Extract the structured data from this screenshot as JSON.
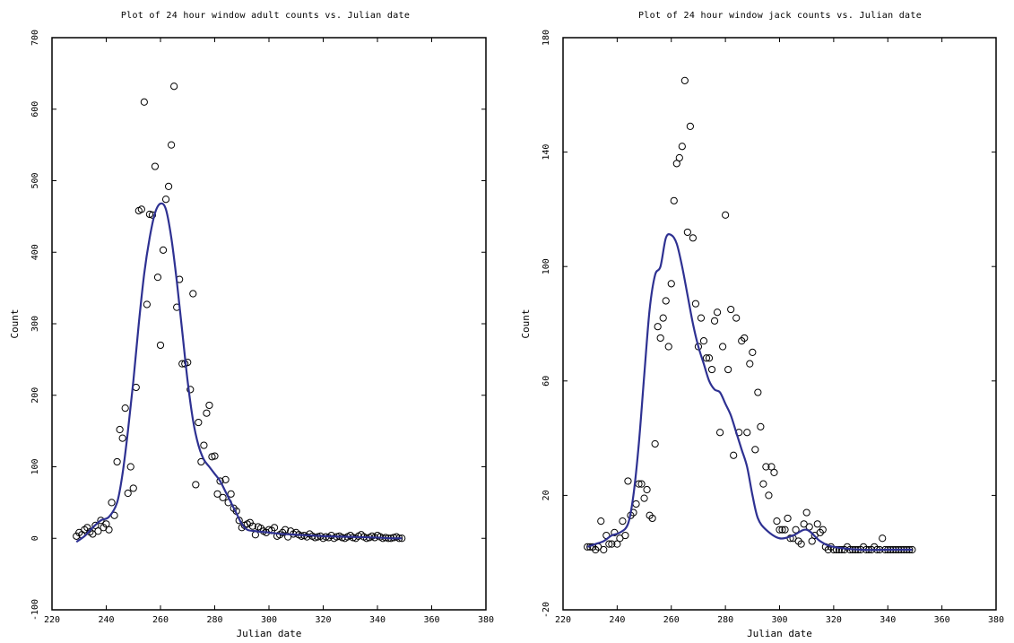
{
  "chart_data": [
    {
      "type": "scatter",
      "title": "Plot of 24 hour window adult counts vs. Julian date",
      "xlabel": "Julian date",
      "ylabel": "Count",
      "xlim": [
        220,
        380
      ],
      "ylim": [
        -100,
        700
      ],
      "xticks": [
        220,
        240,
        260,
        280,
        300,
        320,
        340,
        360,
        380
      ],
      "yticks": [
        -100,
        0,
        100,
        200,
        300,
        400,
        500,
        600,
        700
      ],
      "grid": false,
      "marker_color": "#000000",
      "line_color": "#2e3192",
      "series": [
        {
          "kind": "points",
          "x": [
            229,
            230,
            231,
            232,
            233,
            234,
            235,
            236,
            237,
            238,
            239,
            240,
            241,
            242,
            243,
            244,
            245,
            246,
            247,
            248,
            249,
            250,
            251,
            252,
            253,
            254,
            255,
            256,
            257,
            258,
            259,
            260,
            261,
            262,
            263,
            264,
            265,
            266,
            267,
            268,
            269,
            270,
            271,
            272,
            273,
            274,
            275,
            276,
            277,
            278,
            279,
            280,
            281,
            282,
            283,
            284,
            285,
            286,
            287,
            288,
            289,
            290,
            291,
            292,
            293,
            294,
            295,
            296,
            297,
            298,
            299,
            300,
            301,
            302,
            303,
            304,
            305,
            306,
            307,
            308,
            309,
            310,
            311,
            312,
            313,
            314,
            315,
            316,
            317,
            318,
            319,
            320,
            321,
            322,
            323,
            324,
            325,
            326,
            327,
            328,
            329,
            330,
            331,
            332,
            333,
            334,
            335,
            336,
            337,
            338,
            339,
            340,
            341,
            342,
            343,
            344,
            345,
            346,
            347,
            348,
            349
          ],
          "y": [
            3,
            8,
            5,
            12,
            15,
            9,
            6,
            18,
            10,
            25,
            15,
            20,
            12,
            50,
            32,
            107,
            152,
            140,
            182,
            63,
            100,
            70,
            211,
            458,
            460,
            610,
            327,
            453,
            452,
            520,
            365,
            270,
            403,
            474,
            492,
            550,
            632,
            323,
            362,
            244,
            244,
            246,
            208,
            342,
            75,
            162,
            107,
            130,
            175,
            186,
            114,
            115,
            62,
            80,
            57,
            82,
            50,
            62,
            42,
            38,
            25,
            15,
            18,
            20,
            22,
            17,
            5,
            16,
            14,
            10,
            8,
            12,
            11,
            15,
            3,
            5,
            8,
            12,
            2,
            10,
            6,
            8,
            5,
            3,
            4,
            2,
            6,
            3,
            1,
            2,
            3,
            0,
            2,
            1,
            4,
            0,
            2,
            3,
            1,
            0,
            2,
            4,
            1,
            0,
            3,
            5,
            2,
            0,
            1,
            3,
            1,
            4,
            2,
            0,
            1,
            0,
            0,
            1,
            2,
            0,
            0
          ]
        },
        {
          "kind": "line",
          "x": [
            229,
            232,
            235,
            238,
            241,
            244,
            246,
            248,
            250,
            252,
            254,
            256,
            258,
            260,
            262,
            264,
            266,
            268,
            270,
            272,
            274,
            276,
            278,
            280,
            282,
            284,
            286,
            288,
            290,
            292,
            295,
            300,
            305,
            310,
            315,
            320,
            330,
            340,
            345,
            349
          ],
          "y": [
            -5,
            3,
            15,
            25,
            30,
            50,
            90,
            150,
            220,
            300,
            370,
            420,
            455,
            468,
            460,
            420,
            360,
            290,
            220,
            165,
            130,
            110,
            100,
            90,
            80,
            65,
            50,
            35,
            20,
            12,
            10,
            8,
            6,
            5,
            4,
            3,
            2,
            1,
            0,
            0
          ]
        }
      ]
    },
    {
      "type": "scatter",
      "title": "Plot of 24 hour window jack counts vs. Julian date",
      "xlabel": "Julian date",
      "ylabel": "Count",
      "xlim": [
        220,
        380
      ],
      "ylim": [
        -20,
        180
      ],
      "xticks": [
        220,
        240,
        260,
        280,
        300,
        320,
        340,
        360,
        380
      ],
      "yticks": [
        -20,
        20,
        60,
        100,
        140,
        180
      ],
      "grid": false,
      "marker_color": "#000000",
      "line_color": "#2e3192",
      "series": [
        {
          "kind": "points",
          "x": [
            229,
            230,
            231,
            232,
            233,
            234,
            235,
            236,
            237,
            238,
            239,
            240,
            241,
            242,
            243,
            244,
            245,
            246,
            247,
            248,
            249,
            250,
            251,
            252,
            253,
            254,
            255,
            256,
            257,
            258,
            259,
            260,
            261,
            262,
            263,
            264,
            265,
            266,
            267,
            268,
            269,
            270,
            271,
            272,
            273,
            274,
            275,
            276,
            277,
            278,
            279,
            280,
            281,
            282,
            283,
            284,
            285,
            286,
            287,
            288,
            289,
            290,
            291,
            292,
            293,
            294,
            295,
            296,
            297,
            298,
            299,
            300,
            301,
            302,
            303,
            304,
            305,
            306,
            307,
            308,
            309,
            310,
            311,
            312,
            313,
            314,
            315,
            316,
            317,
            318,
            319,
            320,
            321,
            322,
            323,
            324,
            325,
            326,
            327,
            328,
            329,
            330,
            331,
            332,
            333,
            334,
            335,
            336,
            337,
            338,
            339,
            340,
            341,
            342,
            343,
            344,
            345,
            346,
            347,
            348,
            349
          ],
          "y": [
            2,
            2,
            2,
            1,
            2,
            11,
            1,
            6,
            3,
            3,
            7,
            3,
            5,
            11,
            6,
            25,
            13,
            14,
            17,
            24,
            24,
            19,
            22,
            13,
            12,
            38,
            79,
            75,
            82,
            88,
            72,
            94,
            123,
            136,
            138,
            142,
            165,
            112,
            149,
            110,
            87,
            72,
            82,
            74,
            68,
            68,
            64,
            81,
            84,
            42,
            72,
            118,
            64,
            85,
            34,
            82,
            42,
            74,
            75,
            42,
            66,
            70,
            36,
            56,
            44,
            24,
            30,
            20,
            30,
            28,
            11,
            8,
            8,
            8,
            12,
            5,
            5,
            8,
            4,
            3,
            10,
            14,
            9,
            4,
            6,
            10,
            7,
            8,
            2,
            1,
            2,
            1,
            1,
            1,
            1,
            1,
            2,
            1,
            1,
            1,
            1,
            1,
            2,
            1,
            1,
            1,
            2,
            1,
            1,
            5,
            1,
            1,
            1,
            1,
            1,
            1,
            1,
            1,
            1,
            1,
            1
          ],
          "y_note": ""
        },
        {
          "kind": "line",
          "x": [
            229,
            232,
            235,
            238,
            241,
            244,
            246,
            248,
            250,
            252,
            254,
            256,
            258,
            260,
            262,
            264,
            266,
            268,
            270,
            272,
            274,
            276,
            278,
            280,
            282,
            284,
            286,
            288,
            290,
            292,
            295,
            300,
            305,
            310,
            315,
            320,
            330,
            340,
            345,
            349
          ],
          "y": [
            2,
            3,
            4,
            6,
            7,
            10,
            20,
            38,
            62,
            85,
            97,
            100,
            110,
            111,
            108,
            100,
            90,
            80,
            72,
            66,
            60,
            57,
            56,
            52,
            48,
            42,
            36,
            30,
            20,
            12,
            8,
            5,
            6,
            8,
            4,
            2,
            1,
            1,
            1,
            1
          ]
        }
      ]
    }
  ]
}
